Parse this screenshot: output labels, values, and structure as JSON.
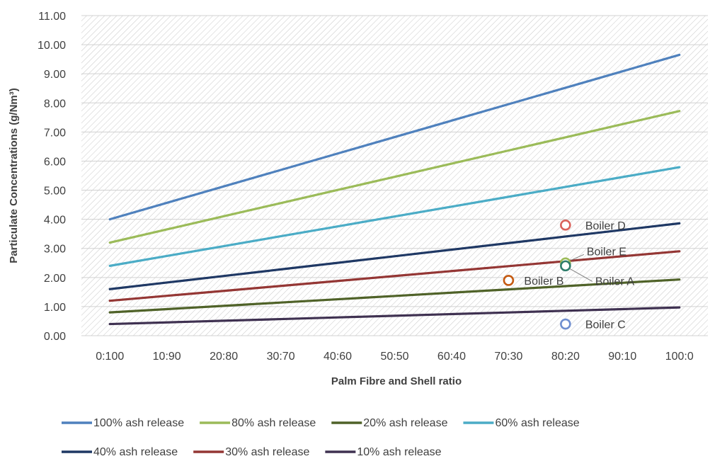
{
  "chart_data": {
    "type": "line",
    "xlabel": "Palm Fibre and Shell ratio",
    "ylabel": "Particulate Concentrations (g/Nm³)",
    "categories": [
      "0:100",
      "10:90",
      "20:80",
      "30:70",
      "40:60",
      "50:50",
      "60:40",
      "70:30",
      "80:20",
      "90:10",
      "100:0"
    ],
    "y_ticks": [
      "0.00",
      "1.00",
      "2.00",
      "3.00",
      "4.00",
      "5.00",
      "6.00",
      "7.00",
      "8.00",
      "9.00",
      "10.00",
      "11.00"
    ],
    "ylim": [
      0,
      11
    ],
    "grid": "diagonal hatch background",
    "legend_position": "bottom",
    "series": [
      {
        "name": "100% ash release",
        "color": "#4f81bd",
        "start": 4.0,
        "end": 9.65
      },
      {
        "name": "80% ash release",
        "color": "#9bbb59",
        "start": 3.2,
        "end": 7.72
      },
      {
        "name": "20% ash release",
        "color": "#4f6228",
        "start": 0.8,
        "end": 1.93
      },
      {
        "name": "60% ash release",
        "color": "#4bacc6",
        "start": 2.4,
        "end": 5.79
      },
      {
        "name": "40% ash release",
        "color": "#1f3864",
        "start": 1.6,
        "end": 3.86
      },
      {
        "name": "30% ash release",
        "color": "#943634",
        "start": 1.2,
        "end": 2.9
      },
      {
        "name": "10% ash release",
        "color": "#3f3151",
        "start": 0.4,
        "end": 0.97
      }
    ],
    "points": [
      {
        "label": "Boiler D",
        "x": "80:20",
        "y": 3.8,
        "color": "#d9625b"
      },
      {
        "label": "Boiler E",
        "x": "80:20",
        "y": 2.5,
        "color": "#9bbb59"
      },
      {
        "label": "Boiler A",
        "x": "80:20",
        "y": 2.4,
        "color": "#2e7d6b"
      },
      {
        "label": "Boiler B",
        "x": "70:30",
        "y": 1.9,
        "color": "#c55a11"
      },
      {
        "label": "Boiler C",
        "x": "80:20",
        "y": 0.4,
        "color": "#6f8fd0"
      }
    ]
  }
}
